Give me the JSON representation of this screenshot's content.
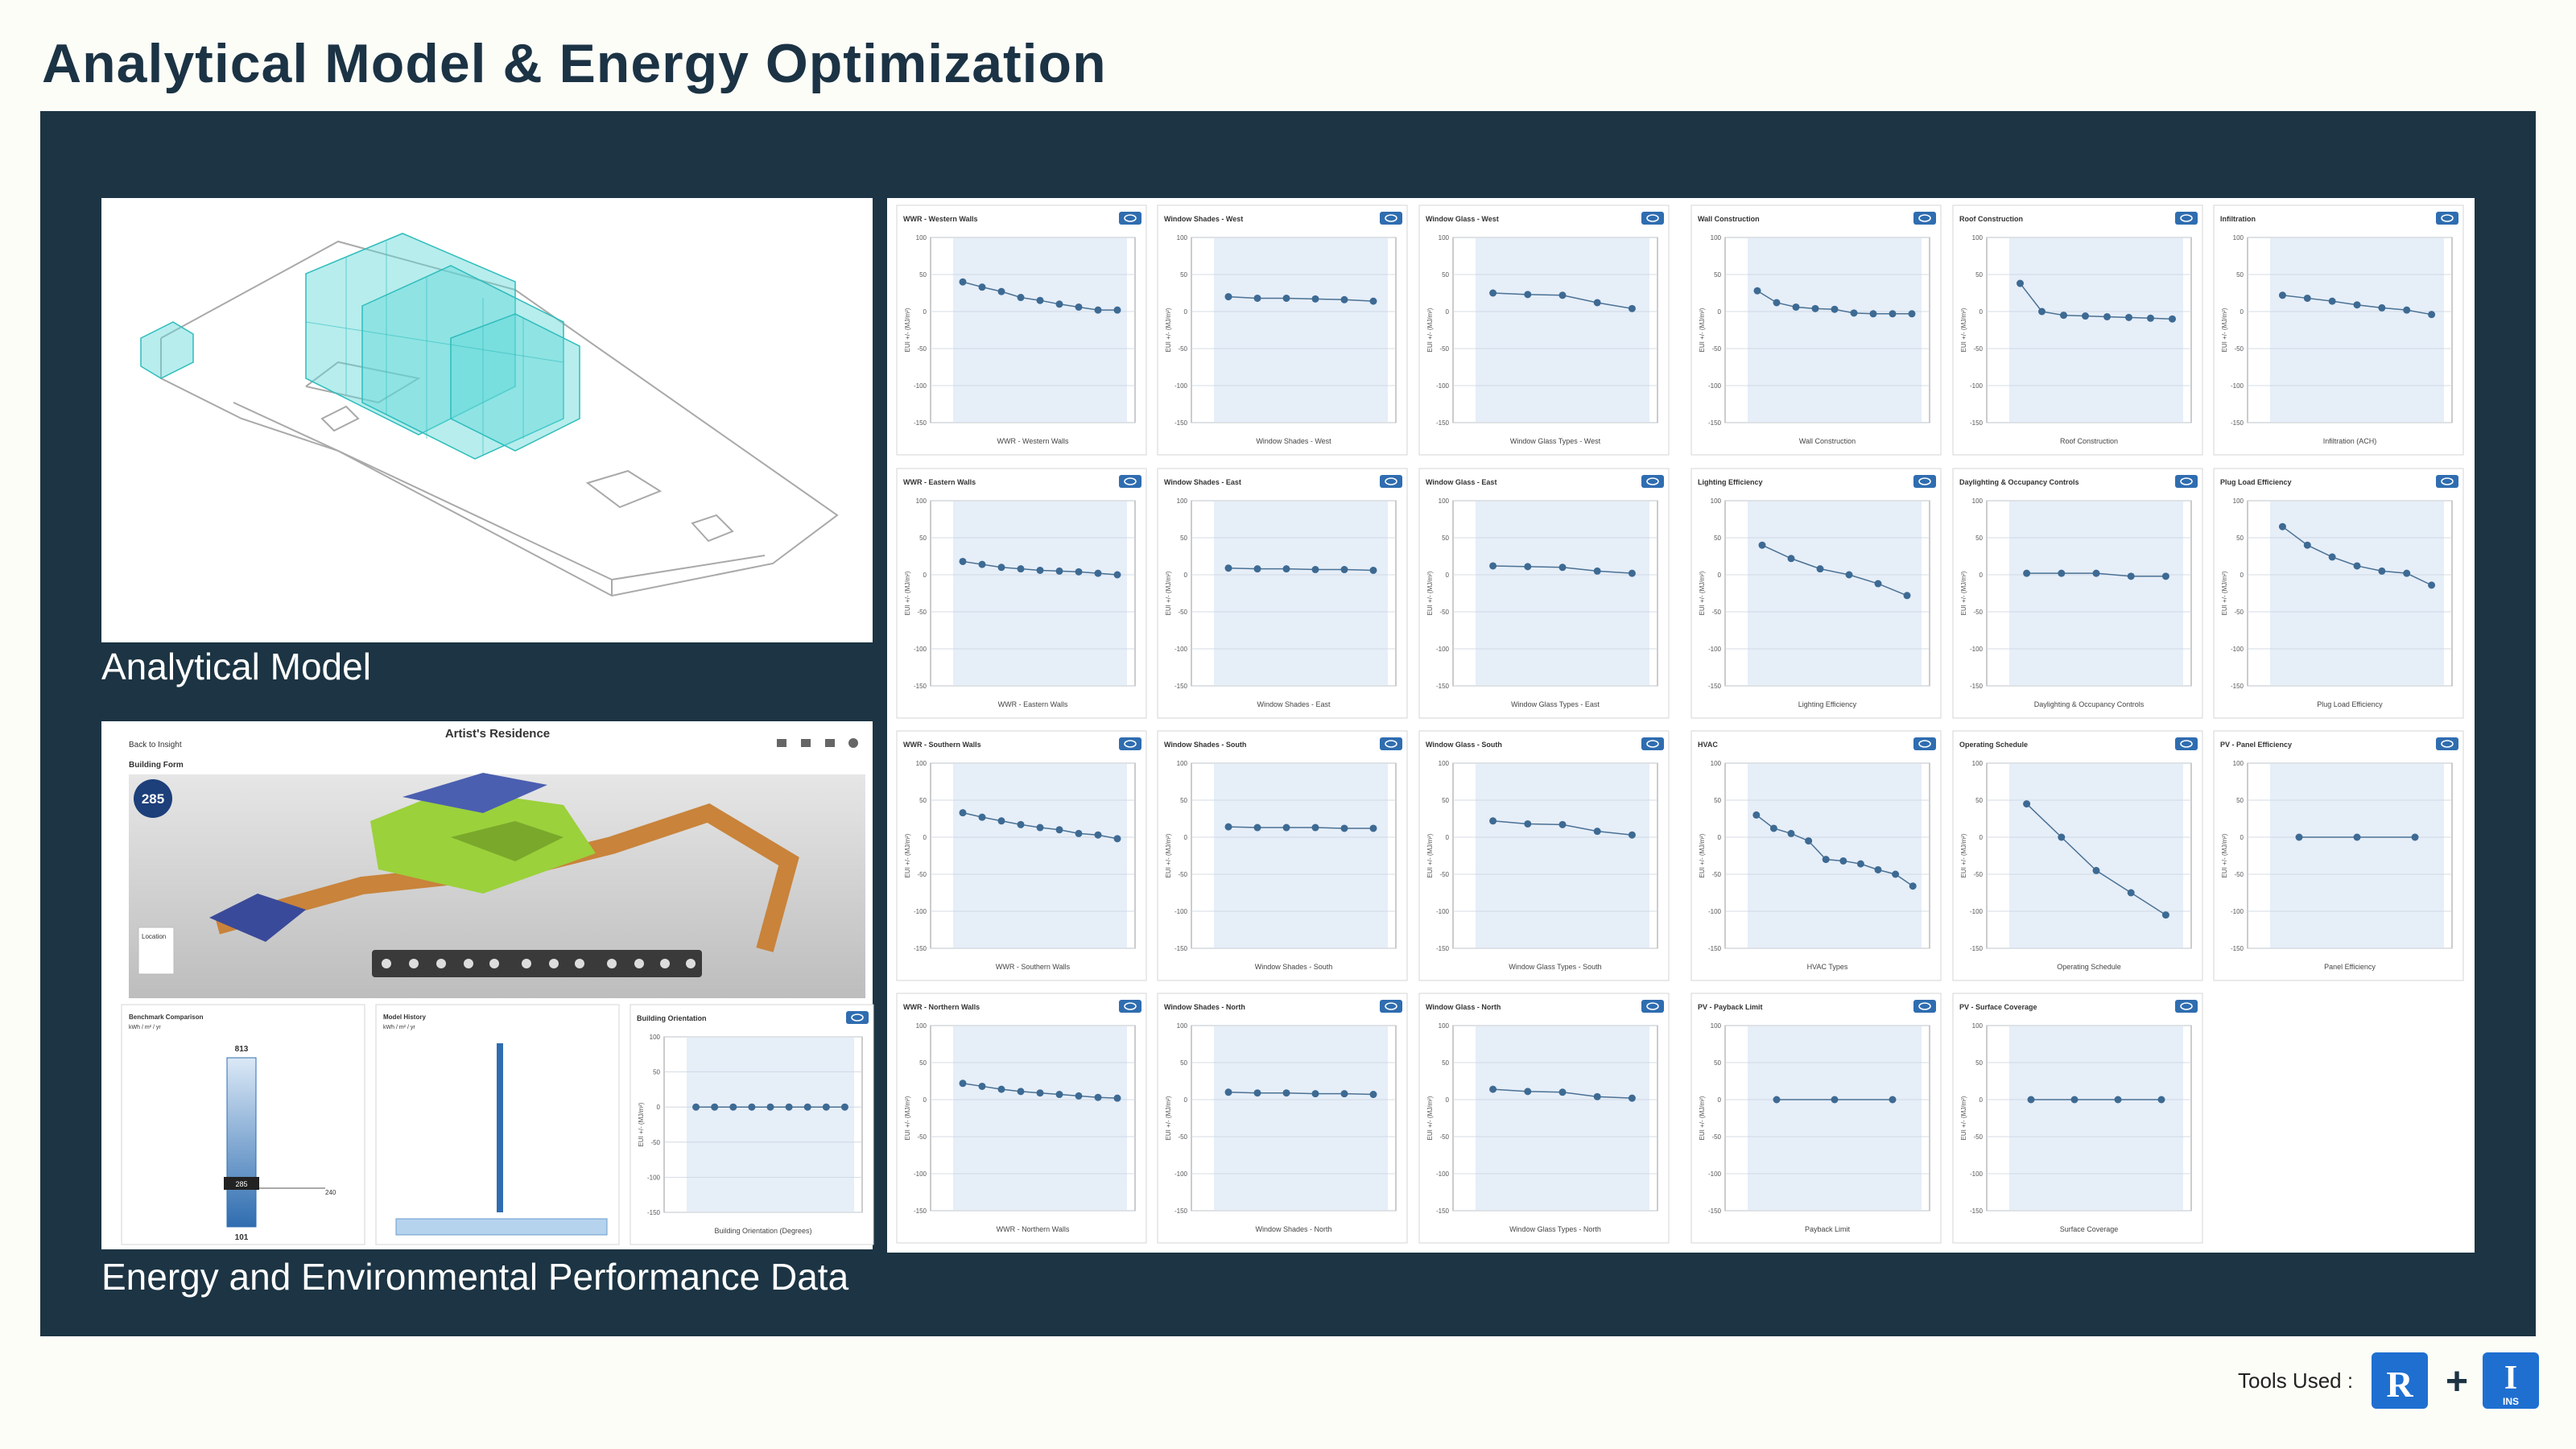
{
  "title": "Analytical Model & Energy Optimization",
  "sections": {
    "model": "Analytical Model",
    "performance": "Energy and Environmental Performance Data"
  },
  "tools": {
    "label": "Tools Used :",
    "revit": "R",
    "insight": "I",
    "insight_sub": "INS"
  },
  "insight": {
    "back": "Back to Insight",
    "project": "Artist's Residence",
    "section": "Building Form",
    "eui": 285,
    "location": "Location",
    "benchmark": {
      "title": "Benchmark Comparison",
      "unit": "kWh / m² / yr",
      "max": 813,
      "current": 285,
      "min": 101,
      "target": 240
    },
    "history": {
      "title": "Model History",
      "unit": "kWh / m² / yr"
    }
  },
  "ylabel": "EUI +/- (MJ/m²)",
  "ylim": [
    -150,
    100
  ],
  "yticks": [
    100,
    50,
    0,
    -50,
    -100,
    -150
  ],
  "panels": [
    {
      "title": "WWR - Western Walls",
      "xlabel": "WWR - Western Walls",
      "values": [
        40,
        33,
        27,
        19,
        15,
        10,
        6,
        2,
        2
      ]
    },
    {
      "title": "Window Shades - West",
      "xlabel": "Window Shades - West",
      "values": [
        20,
        18,
        18,
        17,
        16,
        14
      ]
    },
    {
      "title": "Window Glass - West",
      "xlabel": "Window Glass Types - West",
      "values": [
        25,
        23,
        22,
        12,
        4
      ]
    },
    {
      "title": "Wall Construction",
      "xlabel": "Wall Construction",
      "values": [
        28,
        12,
        6,
        4,
        3,
        -2,
        -3,
        -3,
        -3
      ]
    },
    {
      "title": "Roof Construction",
      "xlabel": "Roof Construction",
      "values": [
        38,
        0,
        -5,
        -6,
        -7,
        -8,
        -9,
        -10
      ]
    },
    {
      "title": "Infiltration",
      "xlabel": "Infiltration (ACH)",
      "values": [
        22,
        18,
        14,
        9,
        5,
        2,
        -4
      ]
    },
    {
      "title": "WWR - Eastern Walls",
      "xlabel": "WWR - Eastern Walls",
      "values": [
        18,
        14,
        10,
        8,
        6,
        5,
        4,
        2,
        0
      ]
    },
    {
      "title": "Window Shades - East",
      "xlabel": "Window Shades - East",
      "values": [
        9,
        8,
        8,
        7,
        7,
        6
      ]
    },
    {
      "title": "Window Glass - East",
      "xlabel": "Window Glass Types - East",
      "values": [
        12,
        11,
        10,
        5,
        2
      ]
    },
    {
      "title": "Lighting Efficiency",
      "xlabel": "Lighting Efficiency",
      "values": [
        40,
        22,
        8,
        0,
        -12,
        -28
      ]
    },
    {
      "title": "Daylighting & Occupancy Controls",
      "xlabel": "Daylighting & Occupancy Controls",
      "values": [
        2,
        2,
        2,
        -2,
        -2
      ]
    },
    {
      "title": "Plug Load Efficiency",
      "xlabel": "Plug Load Efficiency",
      "values": [
        65,
        40,
        24,
        12,
        5,
        2,
        -14
      ]
    },
    {
      "title": "WWR - Southern Walls",
      "xlabel": "WWR - Southern Walls",
      "values": [
        33,
        27,
        22,
        17,
        13,
        10,
        5,
        3,
        -2
      ]
    },
    {
      "title": "Window Shades - South",
      "xlabel": "Window Shades - South",
      "values": [
        14,
        13,
        13,
        13,
        12,
        12
      ]
    },
    {
      "title": "Window Glass - South",
      "xlabel": "Window Glass Types - South",
      "values": [
        22,
        18,
        17,
        8,
        3
      ]
    },
    {
      "title": "HVAC",
      "xlabel": "HVAC Types",
      "values": [
        30,
        12,
        5,
        -5,
        -30,
        -32,
        -36,
        -44,
        -50,
        -66
      ]
    },
    {
      "title": "Operating Schedule",
      "xlabel": "Operating Schedule",
      "values": [
        45,
        0,
        -45,
        -75,
        -105
      ]
    },
    {
      "title": "PV - Panel Efficiency",
      "xlabel": "Panel Efficiency",
      "values": [
        0,
        0,
        0
      ]
    },
    {
      "title": "WWR - Northern Walls",
      "xlabel": "WWR - Northern Walls",
      "values": [
        22,
        18,
        14,
        11,
        9,
        7,
        5,
        3,
        2
      ]
    },
    {
      "title": "Window Shades - North",
      "xlabel": "Window Shades - North",
      "values": [
        10,
        9,
        9,
        8,
        8,
        7
      ]
    },
    {
      "title": "Window Glass - North",
      "xlabel": "Window Glass Types - North",
      "values": [
        14,
        11,
        10,
        4,
        2
      ]
    },
    {
      "title": "PV - Payback Limit",
      "xlabel": "Payback Limit",
      "values": [
        0,
        0,
        0
      ]
    },
    {
      "title": "PV - Surface Coverage",
      "xlabel": "Surface Coverage",
      "values": [
        0,
        0,
        0,
        0
      ]
    },
    {
      "title": "Building Orientation",
      "xlabel": "Building Orientation (Degrees)",
      "values": [
        0,
        0,
        0,
        0,
        0,
        0,
        0,
        0,
        0
      ]
    }
  ]
}
